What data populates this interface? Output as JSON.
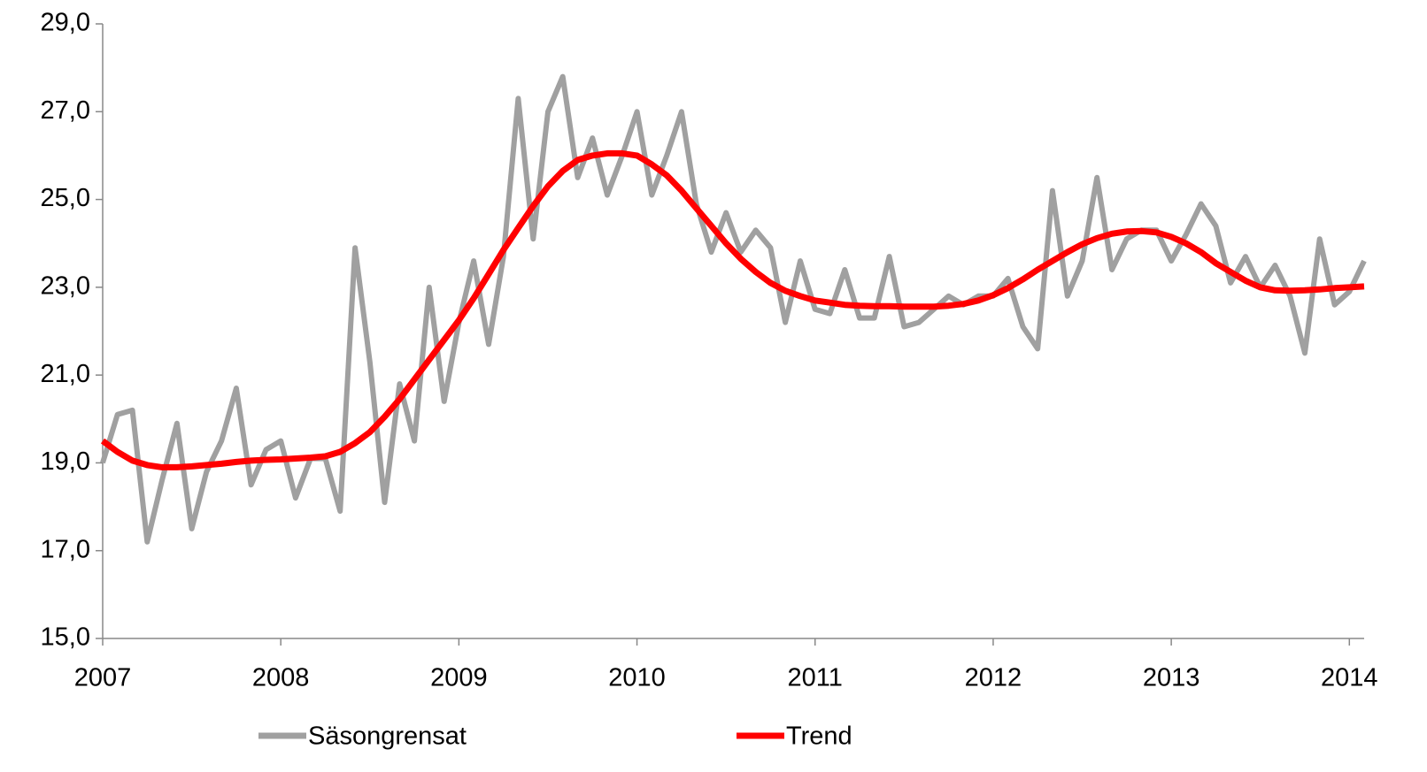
{
  "chart_data": {
    "type": "line",
    "x": [
      2007,
      2007.083,
      2007.167,
      2007.25,
      2007.333,
      2007.417,
      2007.5,
      2007.583,
      2007.667,
      2007.75,
      2007.833,
      2007.917,
      2008,
      2008.083,
      2008.167,
      2008.25,
      2008.333,
      2008.417,
      2008.5,
      2008.583,
      2008.667,
      2008.75,
      2008.833,
      2008.917,
      2009,
      2009.083,
      2009.167,
      2009.25,
      2009.333,
      2009.417,
      2009.5,
      2009.583,
      2009.667,
      2009.75,
      2009.833,
      2009.917,
      2010,
      2010.083,
      2010.167,
      2010.25,
      2010.333,
      2010.417,
      2010.5,
      2010.583,
      2010.667,
      2010.75,
      2010.833,
      2010.917,
      2011,
      2011.083,
      2011.167,
      2011.25,
      2011.333,
      2011.417,
      2011.5,
      2011.583,
      2011.667,
      2011.75,
      2011.833,
      2011.917,
      2012,
      2012.083,
      2012.167,
      2012.25,
      2012.333,
      2012.417,
      2012.5,
      2012.583,
      2012.667,
      2012.75,
      2012.833,
      2012.917,
      2013,
      2013.083,
      2013.167,
      2013.25,
      2013.333,
      2013.417,
      2013.5,
      2013.583,
      2013.667,
      2013.75,
      2013.833,
      2013.917,
      2014,
      2014.083
    ],
    "series": [
      {
        "name": "Säsongrensat",
        "color": "#a0a0a0",
        "values": [
          19.0,
          20.1,
          20.2,
          17.2,
          18.6,
          19.9,
          17.5,
          18.8,
          19.5,
          20.7,
          18.5,
          19.3,
          19.5,
          18.2,
          19.1,
          19.1,
          17.9,
          23.9,
          21.3,
          18.1,
          20.8,
          19.5,
          23.0,
          20.4,
          22.2,
          23.6,
          21.7,
          23.7,
          27.3,
          24.1,
          27.0,
          27.8,
          25.5,
          26.4,
          25.1,
          26.0,
          27.0,
          25.1,
          26.0,
          27.0,
          24.9,
          23.8,
          24.7,
          23.8,
          24.3,
          23.9,
          22.2,
          23.6,
          22.5,
          22.4,
          23.4,
          22.3,
          22.3,
          23.7,
          22.1,
          22.2,
          22.5,
          22.8,
          22.6,
          22.8,
          22.8,
          23.2,
          22.1,
          21.6,
          25.2,
          22.8,
          23.6,
          25.5,
          23.4,
          24.1,
          24.3,
          24.3,
          23.6,
          24.2,
          24.9,
          24.4,
          23.1,
          23.7,
          23.0,
          23.5,
          22.8,
          21.5,
          24.1,
          22.6,
          22.9,
          23.6
        ]
      },
      {
        "name": "Trend",
        "color": "#ff0000",
        "values": [
          19.5,
          19.25,
          19.05,
          18.95,
          18.9,
          18.9,
          18.92,
          18.95,
          18.98,
          19.02,
          19.05,
          19.07,
          19.08,
          19.1,
          19.12,
          19.15,
          19.25,
          19.45,
          19.7,
          20.05,
          20.45,
          20.9,
          21.35,
          21.8,
          22.25,
          22.75,
          23.3,
          23.85,
          24.35,
          24.85,
          25.3,
          25.65,
          25.9,
          26.0,
          26.05,
          26.05,
          26.0,
          25.8,
          25.55,
          25.2,
          24.8,
          24.4,
          24.0,
          23.65,
          23.35,
          23.1,
          22.92,
          22.8,
          22.7,
          22.65,
          22.6,
          22.58,
          22.57,
          22.57,
          22.56,
          22.56,
          22.56,
          22.58,
          22.62,
          22.7,
          22.82,
          22.98,
          23.18,
          23.4,
          23.6,
          23.8,
          23.98,
          24.12,
          24.22,
          24.27,
          24.28,
          24.25,
          24.15,
          24.0,
          23.8,
          23.55,
          23.35,
          23.15,
          23.0,
          22.93,
          22.92,
          22.93,
          22.95,
          22.98,
          23.0,
          23.02
        ]
      }
    ],
    "xlim": [
      2007,
      2014.083
    ],
    "xticks": [
      2007,
      2008,
      2009,
      2010,
      2011,
      2012,
      2013,
      2014
    ],
    "ylim": [
      15,
      29
    ],
    "yticks": [
      {
        "value": 15,
        "label": "15,0"
      },
      {
        "value": 17,
        "label": "17,0"
      },
      {
        "value": 19,
        "label": "19,0"
      },
      {
        "value": 21,
        "label": "21,0"
      },
      {
        "value": 23,
        "label": "23,0"
      },
      {
        "value": 25,
        "label": "25,0"
      },
      {
        "value": 27,
        "label": "27,0"
      },
      {
        "value": 29,
        "label": "29,0"
      }
    ],
    "grid": false
  }
}
